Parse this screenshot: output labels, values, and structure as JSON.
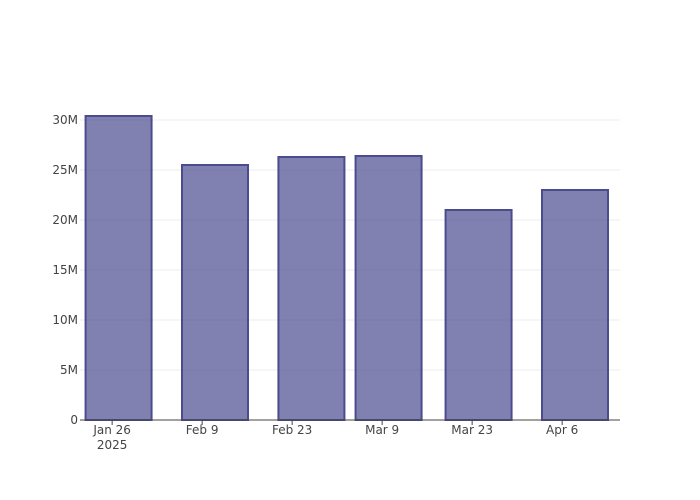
{
  "chart_data": {
    "type": "bar",
    "x": [
      "2025-01-27",
      "2025-02-11",
      "2025-02-26",
      "2025-03-10",
      "2025-03-24",
      "2025-04-08"
    ],
    "values": [
      30400000,
      25500000,
      26300000,
      26400000,
      21000000,
      23000000
    ],
    "color": "rgba(70,70,140,0.68)",
    "line_color": "#4b4b8f",
    "xlim": [
      "2025-01-21",
      "2025-04-15"
    ],
    "xticks": [
      {
        "value": "2025-01-26",
        "label": "Jan 26\n2025"
      },
      {
        "value": "2025-02-09",
        "label": "Feb 9"
      },
      {
        "value": "2025-02-23",
        "label": "Feb 23"
      },
      {
        "value": "2025-03-09",
        "label": "Mar 9"
      },
      {
        "value": "2025-03-23",
        "label": "Mar 23"
      },
      {
        "value": "2025-04-06",
        "label": "Apr 6"
      }
    ],
    "ylim": [
      0,
      32000000
    ],
    "yticks": [
      0,
      {
        "value": 5000000,
        "label": "5M"
      },
      {
        "value": 10000000,
        "label": "10M"
      },
      {
        "value": 15000000,
        "label": "15M"
      },
      {
        "value": 20000000,
        "label": "20M"
      },
      {
        "value": 25000000,
        "label": "25M"
      },
      {
        "value": 30000000,
        "label": "30M"
      }
    ],
    "grid": true
  }
}
